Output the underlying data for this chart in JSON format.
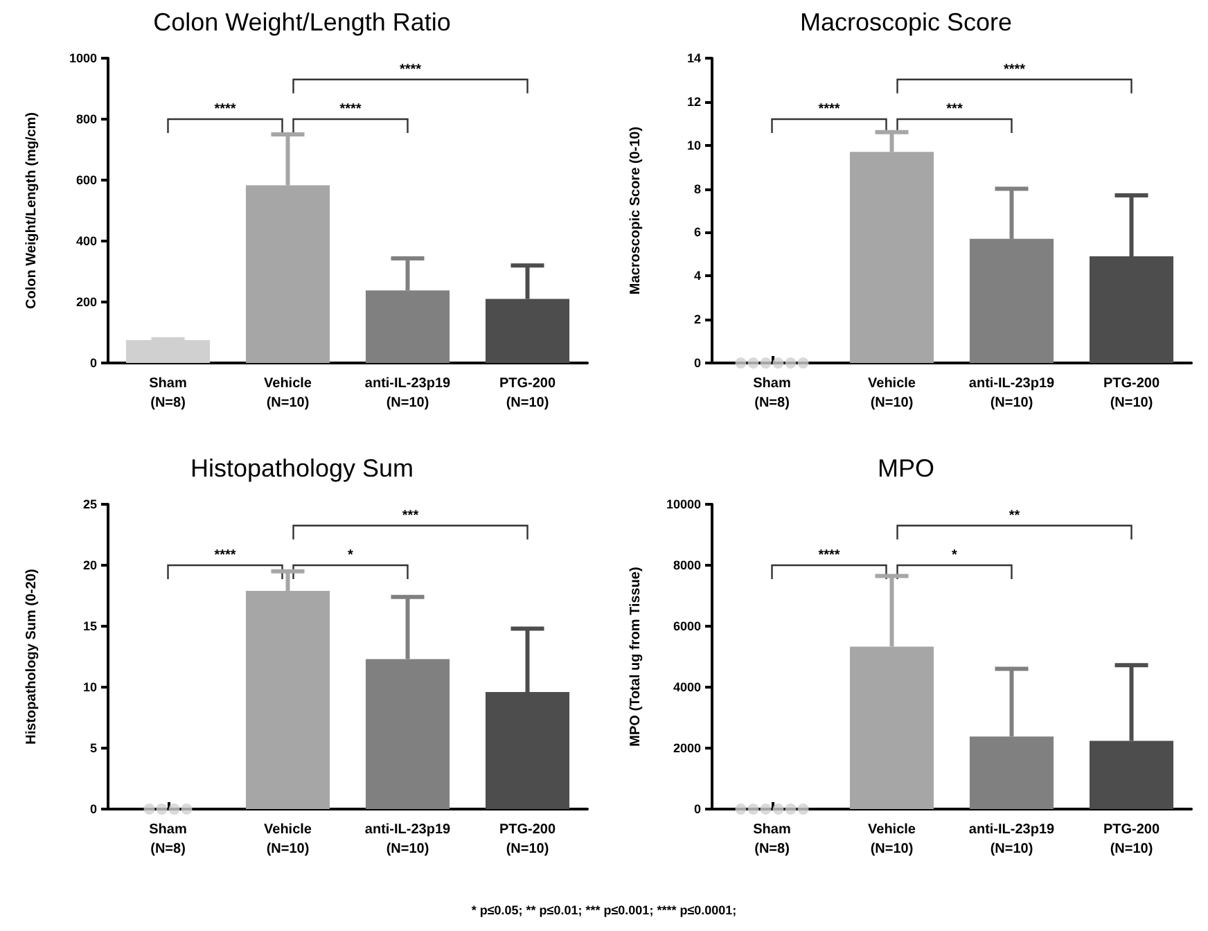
{
  "chart_data": [
    {
      "type": "bar",
      "title": "Colon Weight/Length Ratio",
      "ylabel": "Colon Weight/Length (mg/cm)",
      "categories": [
        "Sham\n(N=8)",
        "Vehicle\n(N=10)",
        "anti-IL-23p19\n(N=10)",
        "PTG-200\n(N=10)"
      ],
      "values": [
        75,
        583,
        238,
        210
      ],
      "colors": [
        "#d0d0d0",
        "#a6a6a6",
        "#808080",
        "#4d4d4d"
      ],
      "errors": [
        [
          75,
          78
        ],
        [
          583,
          750
        ],
        [
          238,
          343
        ],
        [
          210,
          320
        ]
      ],
      "ylim": [
        0,
        1000
      ],
      "yticks": [
        0,
        200,
        400,
        600,
        800,
        1000
      ],
      "annotations": [
        "****",
        "****",
        "****"
      ]
    },
    {
      "type": "bar",
      "title": "Macroscopic Score",
      "ylabel": "Macroscopic Score (0-10)",
      "categories": [
        "Sham\n(N=8)",
        "Vehicle\n(N=10)",
        "anti-IL-23p19\n(N=10)",
        "PTG-200\n(N=10)"
      ],
      "values": [
        0,
        9.7,
        5.7,
        4.9
      ],
      "colors": [
        "#d0d0d0",
        "#a6a6a6",
        "#808080",
        "#4d4d4d"
      ],
      "errors": [
        null,
        [
          9.7,
          10.6
        ],
        [
          5.7,
          8.0
        ],
        [
          4.9,
          7.7
        ]
      ],
      "ylim": [
        0,
        14
      ],
      "yticks": [
        0,
        2,
        4,
        6,
        8,
        10,
        12,
        14
      ],
      "annotations": [
        "****",
        "***",
        "****"
      ],
      "series": [
        {
          "type": "scatter",
          "color": "#d0d0d0",
          "x": [
            "Sham\n(N=8)",
            "Sham\n(N=8)",
            "Sham\n(N=8)",
            "Sham\n(N=8)",
            "Sham\n(N=8)",
            "Sham\n(N=8)"
          ],
          "values": [
            0,
            0,
            0,
            0,
            0,
            0
          ]
        }
      ]
    },
    {
      "type": "bar",
      "title": "Histopathology Sum",
      "ylabel": "Histopathology Sum (0-20)",
      "categories": [
        "Sham\n(N=8)",
        "Vehicle\n(N=10)",
        "anti-IL-23p19\n(N=10)",
        "PTG-200\n(N=10)"
      ],
      "values": [
        0,
        17.9,
        12.3,
        9.6
      ],
      "colors": [
        "#d0d0d0",
        "#a6a6a6",
        "#808080",
        "#4d4d4d"
      ],
      "errors": [
        null,
        [
          17.9,
          19.5
        ],
        [
          12.3,
          17.4
        ],
        [
          9.6,
          14.8
        ]
      ],
      "ylim": [
        0,
        25
      ],
      "yticks": [
        0,
        5,
        10,
        15,
        20,
        25
      ],
      "annotations": [
        "****",
        "*",
        "***"
      ],
      "series": [
        {
          "type": "scatter",
          "color": "#d0d0d0",
          "x": [
            "Sham\n(N=8)",
            "Sham\n(N=8)",
            "Sham\n(N=8)",
            "Sham\n(N=8)"
          ],
          "values": [
            0,
            0,
            0,
            0
          ]
        }
      ]
    },
    {
      "type": "bar",
      "title": "MPO",
      "ylabel": "MPO (Total ug from Tissue)",
      "categories": [
        "Sham\n(N=8)",
        "Vehicle\n(N=10)",
        "anti-IL-23p19\n(N=10)",
        "PTG-200\n(N=10)"
      ],
      "values": [
        0,
        5330,
        2380,
        2240
      ],
      "colors": [
        "#d0d0d0",
        "#a6a6a6",
        "#808080",
        "#4d4d4d"
      ],
      "errors": [
        null,
        [
          5330,
          7650
        ],
        [
          2380,
          4600
        ],
        [
          2240,
          4720
        ]
      ],
      "ylim": [
        0,
        10000
      ],
      "yticks": [
        0,
        2000,
        4000,
        6000,
        8000,
        10000
      ],
      "annotations": [
        "****",
        "*",
        "**",
        "* p≤0.05; ** p≤0.01; *** p≤0.001; **** p≤0.0001;"
      ],
      "series": [
        {
          "type": "scatter",
          "color": "#d0d0d0",
          "x": [
            "Sham\n(N=8)",
            "Sham\n(N=8)",
            "Sham\n(N=8)",
            "Sham\n(N=8)",
            "Sham\n(N=8)",
            "Sham\n(N=8)"
          ],
          "values": [
            0,
            0,
            0,
            0,
            0,
            0
          ]
        }
      ]
    }
  ]
}
